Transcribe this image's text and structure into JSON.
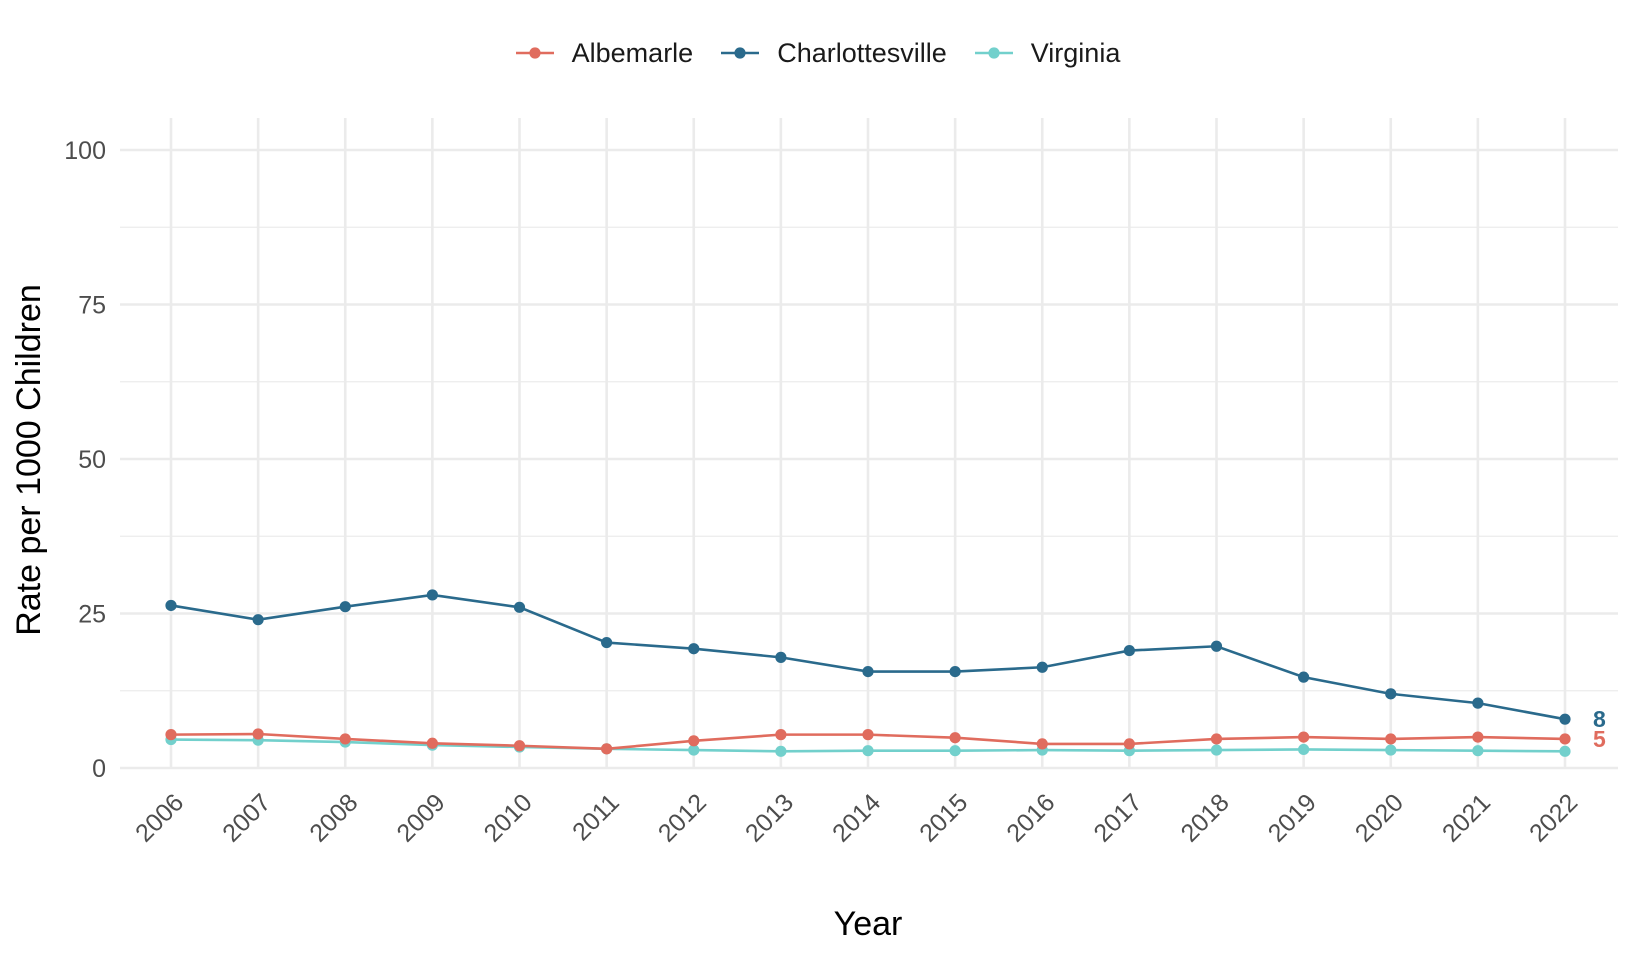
{
  "chart_data": {
    "type": "line",
    "title": "",
    "xlabel": "Year",
    "ylabel": "Rate per 1000 Children",
    "x": [
      "2006",
      "2007",
      "2008",
      "2009",
      "2010",
      "2011",
      "2012",
      "2013",
      "2014",
      "2015",
      "2016",
      "2017",
      "2018",
      "2019",
      "2020",
      "2021",
      "2022"
    ],
    "ylim": [
      0,
      100
    ],
    "yticks": [
      0,
      25,
      50,
      75,
      100
    ],
    "grid": true,
    "legend_position": "top",
    "series": [
      {
        "name": "Albemarle",
        "color": "#E06C5E",
        "values": [
          5.4,
          5.5,
          4.7,
          4.0,
          3.6,
          3.1,
          4.4,
          5.4,
          5.4,
          4.9,
          3.9,
          3.9,
          4.7,
          5.0,
          4.7,
          5.0,
          4.7
        ],
        "end_label": "5"
      },
      {
        "name": "Charlottesville",
        "color": "#2A6A8C",
        "values": [
          26.3,
          24.0,
          26.1,
          28.0,
          26.0,
          20.3,
          19.3,
          17.9,
          15.6,
          15.6,
          16.3,
          19.0,
          19.7,
          14.7,
          12.0,
          10.5,
          7.9
        ],
        "end_label": "8"
      },
      {
        "name": "Virginia",
        "color": "#72D0CC",
        "values": [
          4.6,
          4.5,
          4.2,
          3.7,
          3.4,
          3.1,
          2.9,
          2.7,
          2.8,
          2.8,
          2.9,
          2.8,
          2.9,
          3.0,
          2.9,
          2.8,
          2.7
        ]
      }
    ]
  }
}
